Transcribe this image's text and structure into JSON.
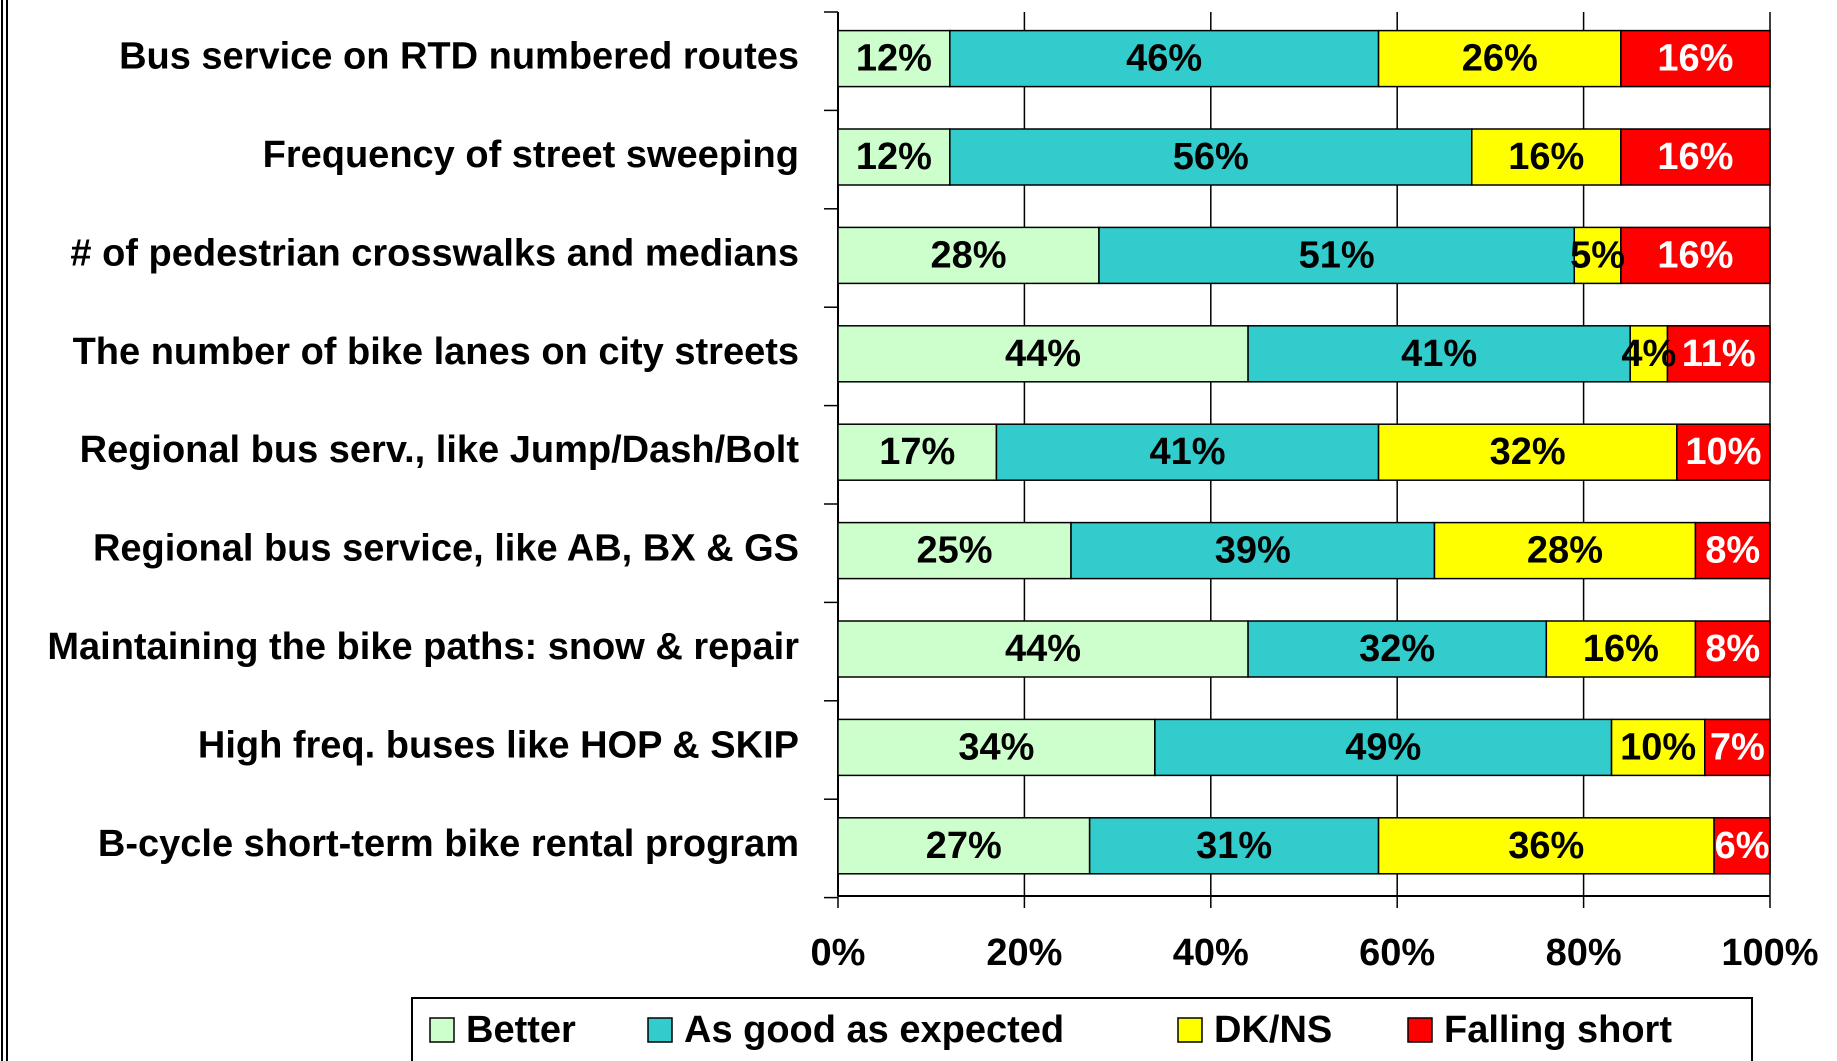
{
  "chart_data": {
    "type": "stacked-barh",
    "categories": [
      "Bus service on RTD numbered routes",
      "Frequency of street sweeping",
      "# of pedestrian crosswalks and medians",
      "The number of bike lanes on city streets",
      "Regional bus serv., like Jump/Dash/Bolt",
      "Regional bus service, like AB, BX & GS",
      "Maintaining the bike paths: snow & repair",
      "High freq. buses like HOP & SKIP",
      "B-cycle short-term bike rental program"
    ],
    "series": [
      {
        "name": "Better",
        "color": "#ccffcc",
        "values": [
          12,
          12,
          28,
          44,
          17,
          25,
          44,
          34,
          27
        ],
        "value_labels": [
          "12%",
          "12%",
          "28%",
          "44%",
          "17%",
          "25%",
          "44%",
          "34%",
          "27%"
        ]
      },
      {
        "name": "As good as expected",
        "color": "#33cccc",
        "values": [
          46,
          56,
          51,
          41,
          41,
          39,
          32,
          49,
          31
        ],
        "value_labels": [
          "46%",
          "56%",
          "51%",
          "41%",
          "41%",
          "39%",
          "32%",
          "49%",
          "31%"
        ]
      },
      {
        "name": "DK/NS",
        "color": "#ffff00",
        "values": [
          26,
          16,
          5,
          4,
          32,
          28,
          16,
          10,
          36
        ],
        "value_labels": [
          "26%",
          "16%",
          "5%",
          "4%",
          "32%",
          "28%",
          "16%",
          "10%",
          "36%"
        ]
      },
      {
        "name": "Falling short",
        "color": "#ff0000",
        "values": [
          16,
          16,
          16,
          11,
          10,
          8,
          8,
          7,
          6
        ],
        "value_labels": [
          "16%",
          "16%",
          "16%",
          "11%",
          "10%",
          "8%",
          "8%",
          "7%",
          "6%"
        ]
      }
    ],
    "xlim": [
      0,
      100
    ],
    "xticks": [
      {
        "value": 0,
        "label": "0%"
      },
      {
        "value": 20,
        "label": "20%"
      },
      {
        "value": 40,
        "label": "40%"
      },
      {
        "value": 60,
        "label": "60%"
      },
      {
        "value": 80,
        "label": "80%"
      },
      {
        "value": 100,
        "label": "100%"
      }
    ],
    "grid": true,
    "legend": "bottom"
  }
}
